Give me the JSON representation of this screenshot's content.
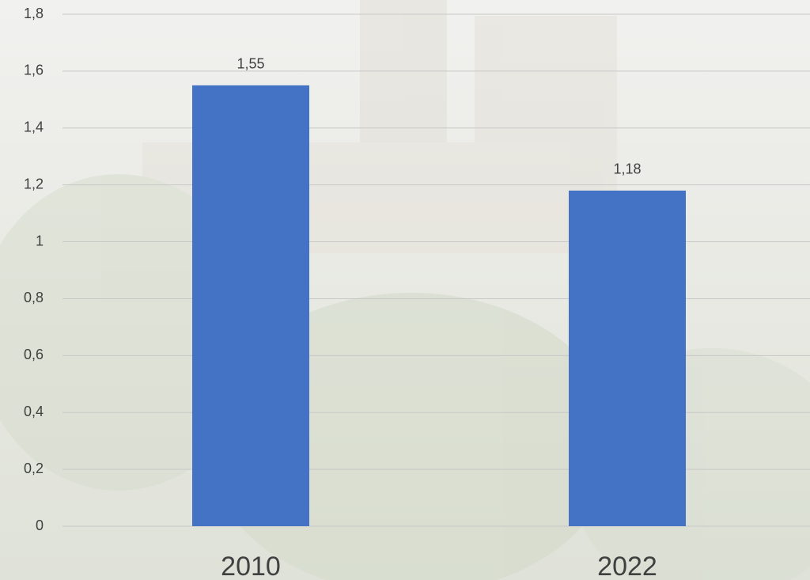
{
  "chart_data": {
    "type": "bar",
    "categories": [
      "2010",
      "2022"
    ],
    "values": [
      1.55,
      1.18
    ],
    "value_labels": [
      "1,55",
      "1,18"
    ],
    "color": "#4472c4",
    "ylim": [
      0,
      1.8
    ],
    "yticks": [
      0,
      {
        "value": 0.2,
        "label": "0,2"
      },
      {
        "value": 0.4,
        "label": "0,4"
      },
      {
        "value": 0.6,
        "label": "0,6"
      },
      {
        "value": 0.8,
        "label": "0,8"
      },
      1,
      {
        "value": 1.2,
        "label": "1,2"
      },
      {
        "value": 1.4,
        "label": "1,4"
      },
      {
        "value": 1.6,
        "label": "1,6"
      },
      {
        "value": 1.8,
        "label": "1,8"
      }
    ],
    "grid": true
  }
}
